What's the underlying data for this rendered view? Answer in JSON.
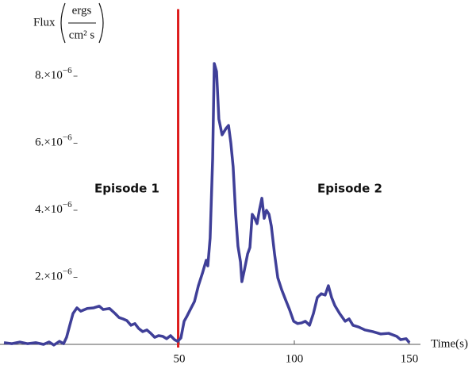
{
  "chart_data": {
    "type": "line",
    "ylabel": {
      "prefix": "Flux",
      "numerator": "ergs",
      "denominator": "cm² s"
    },
    "xlabel": "Time(s)",
    "x": [
      -26.2,
      -22.8,
      -19.3,
      -15.9,
      -12.4,
      -9.0,
      -6.6,
      -4.5,
      -2.1,
      -0.3,
      1.0,
      2.4,
      3.8,
      5.5,
      7.2,
      10.0,
      12.8,
      15.2,
      16.9,
      19.7,
      22.1,
      23.8,
      25.5,
      27.2,
      29.0,
      30.7,
      32.4,
      34.1,
      35.9,
      37.6,
      39.3,
      41.0,
      42.8,
      44.5,
      46.2,
      47.9,
      49.3,
      50.7,
      52.1,
      53.4,
      54.8,
      56.6,
      58.3,
      60.0,
      61.7,
      62.4,
      63.4,
      64.5,
      65.2,
      66.2,
      67.2,
      68.6,
      70.3,
      71.4,
      72.4,
      73.4,
      74.5,
      75.5,
      76.6,
      77.2,
      78.3,
      79.7,
      80.7,
      81.7,
      82.8,
      83.8,
      84.8,
      85.9,
      86.9,
      87.9,
      89.0,
      90.0,
      91.4,
      92.8,
      94.5,
      96.2,
      97.9,
      99.7,
      101.4,
      103.1,
      104.8,
      106.6,
      108.3,
      110.0,
      111.7,
      113.4,
      114.8,
      116.2,
      117.6,
      119.7,
      122.1,
      123.8,
      125.5,
      127.9,
      130.7,
      134.1,
      137.6,
      141.0,
      144.5,
      146.2,
      148.6,
      150.0
    ],
    "series": [
      {
        "color": "#3f3f98",
        "values": [
          5e-08,
          2e-08,
          7e-08,
          2e-08,
          5e-08,
          0,
          7e-08,
          -2e-08,
          9e-08,
          2e-08,
          2.1e-07,
          5.7e-07,
          9.2e-07,
          1.09e-06,
          9.9e-07,
          1.07e-06,
          1.09e-06,
          1.14e-06,
          1.04e-06,
          1.07e-06,
          9.2e-07,
          8e-07,
          7.6e-07,
          7.1e-07,
          5.7e-07,
          6.2e-07,
          4.7e-07,
          3.8e-07,
          4.3e-07,
          3.3e-07,
          2.1e-07,
          2.6e-07,
          2.4e-07,
          1.7e-07,
          2.6e-07,
          1.4e-07,
          9e-08,
          1.9e-07,
          6.9e-07,
          8.5e-07,
          1.04e-06,
          1.28e-06,
          1.75e-06,
          2.11e-06,
          2.51e-06,
          2.34e-06,
          3.17e-06,
          5.54e-06,
          8.38e-06,
          8.14e-06,
          6.72e-06,
          6.25e-06,
          6.44e-06,
          6.53e-06,
          6.01e-06,
          5.3e-06,
          3.88e-06,
          2.93e-06,
          2.46e-06,
          1.87e-06,
          2.22e-06,
          2.7e-06,
          2.89e-06,
          3.88e-06,
          3.76e-06,
          3.6e-06,
          4e-06,
          4.36e-06,
          3.76e-06,
          4e-06,
          3.88e-06,
          3.53e-06,
          2.7e-06,
          1.99e-06,
          1.63e-06,
          1.33e-06,
          1.04e-06,
          6.9e-07,
          6.2e-07,
          6.4e-07,
          6.9e-07,
          5.7e-07,
          9.2e-07,
          1.4e-06,
          1.51e-06,
          1.47e-06,
          1.75e-06,
          1.4e-06,
          1.16e-06,
          9.2e-07,
          6.9e-07,
          7.6e-07,
          5.7e-07,
          5.2e-07,
          4.3e-07,
          3.8e-07,
          3.1e-07,
          3.3e-07,
          2.4e-07,
          1.4e-07,
          1.7e-07,
          5e-08
        ]
      }
    ],
    "xlim": [
      -28,
      160
    ],
    "ylim": [
      0,
      1e-05
    ],
    "xticks": [
      50,
      100,
      150
    ],
    "yticks": [
      {
        "value": 2e-06,
        "label": "2.×10−6"
      },
      {
        "value": 4e-06,
        "label": "4.×10−6"
      },
      {
        "value": 6e-06,
        "label": "6.×10−6"
      },
      {
        "value": 8e-06,
        "label": "8.×10−6"
      }
    ],
    "y_axis_position": 4,
    "vline": {
      "x": 49.5,
      "color": "#dd1c1c"
    },
    "annotations": [
      "Episode 1",
      "Episode 2"
    ]
  }
}
